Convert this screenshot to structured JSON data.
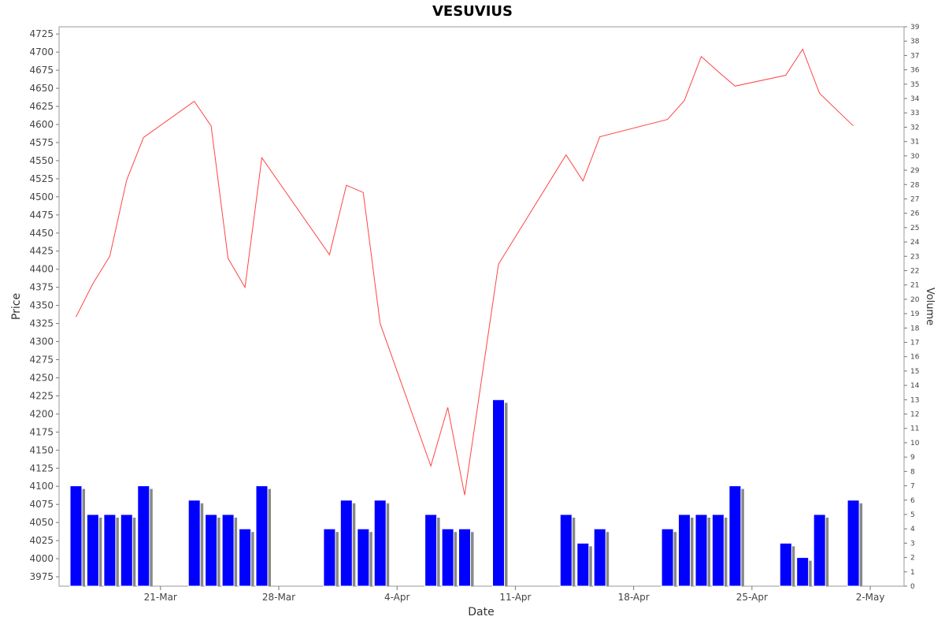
{
  "chart_data": {
    "type": "line",
    "title": "VESUVIUS",
    "xlabel": "Date",
    "ylabel": "Price",
    "y2label": "Volume",
    "x_tick_labels": [
      "21-Mar",
      "28-Mar",
      "4-Apr",
      "11-Apr",
      "18-Apr",
      "25-Apr",
      "2-May"
    ],
    "y_ticks": [
      3975,
      4000,
      4025,
      4050,
      4075,
      4100,
      4125,
      4150,
      4175,
      4200,
      4225,
      4250,
      4275,
      4300,
      4325,
      4350,
      4375,
      4400,
      4425,
      4450,
      4475,
      4500,
      4525,
      4550,
      4575,
      4600,
      4625,
      4650,
      4675,
      4700,
      4725
    ],
    "y2_ticks": [
      0,
      1,
      2,
      3,
      4,
      5,
      6,
      7,
      8,
      9,
      10,
      11,
      12,
      13,
      14,
      15,
      16,
      17,
      18,
      19,
      20,
      21,
      22,
      23,
      24,
      25,
      26,
      27,
      28,
      29,
      30,
      31,
      32,
      33,
      34,
      35,
      36,
      37,
      38,
      39
    ],
    "ylim": [
      3962,
      4735
    ],
    "y2lim": [
      0,
      39
    ],
    "xlim": [
      "2022-03-15",
      "2022-05-04"
    ],
    "grid": false,
    "colors": {
      "price": "#ff4444",
      "volume": "#0000ff",
      "volume_shadow": "#888888"
    },
    "series": [
      {
        "values": [
          [
            "2022-03-16",
            4334
          ],
          [
            "2022-03-17",
            4380
          ],
          [
            "2022-03-18",
            4418
          ],
          [
            "2022-03-19",
            4523
          ],
          [
            "2022-03-20",
            4582
          ],
          [
            "2022-03-23",
            4632
          ],
          [
            "2022-03-24",
            4598
          ],
          [
            "2022-03-25",
            4415
          ],
          [
            "2022-03-26",
            4375
          ],
          [
            "2022-03-27",
            4554
          ],
          [
            "2022-03-31",
            4420
          ],
          [
            "2022-04-01",
            4516
          ],
          [
            "2022-04-02",
            4506
          ],
          [
            "2022-04-03",
            4325
          ],
          [
            "2022-04-06",
            4128
          ],
          [
            "2022-04-07",
            4209
          ],
          [
            "2022-04-08",
            4088
          ],
          [
            "2022-04-10",
            4407
          ],
          [
            "2022-04-14",
            4558
          ],
          [
            "2022-04-15",
            4522
          ],
          [
            "2022-04-16",
            4583
          ],
          [
            "2022-04-20",
            4607
          ],
          [
            "2022-04-21",
            4633
          ],
          [
            "2022-04-22",
            4694
          ],
          [
            "2022-04-23",
            4673
          ],
          [
            "2022-04-24",
            4653
          ],
          [
            "2022-04-27",
            4668
          ],
          [
            "2022-04-28",
            4704
          ],
          [
            "2022-04-29",
            4643
          ],
          [
            "2022-05-01",
            4598
          ]
        ]
      },
      {
        "type": "bar",
        "values": [
          [
            "2022-03-16",
            7
          ],
          [
            "2022-03-17",
            5
          ],
          [
            "2022-03-18",
            5
          ],
          [
            "2022-03-19",
            5
          ],
          [
            "2022-03-20",
            7
          ],
          [
            "2022-03-23",
            6
          ],
          [
            "2022-03-24",
            5
          ],
          [
            "2022-03-25",
            5
          ],
          [
            "2022-03-26",
            4
          ],
          [
            "2022-03-27",
            7
          ],
          [
            "2022-03-31",
            4
          ],
          [
            "2022-04-01",
            6
          ],
          [
            "2022-04-02",
            4
          ],
          [
            "2022-04-03",
            6
          ],
          [
            "2022-04-06",
            5
          ],
          [
            "2022-04-07",
            4
          ],
          [
            "2022-04-08",
            4
          ],
          [
            "2022-04-10",
            13
          ],
          [
            "2022-04-14",
            5
          ],
          [
            "2022-04-15",
            3
          ],
          [
            "2022-04-16",
            4
          ],
          [
            "2022-04-20",
            4
          ],
          [
            "2022-04-21",
            5
          ],
          [
            "2022-04-22",
            5
          ],
          [
            "2022-04-23",
            5
          ],
          [
            "2022-04-24",
            7
          ],
          [
            "2022-04-27",
            3
          ],
          [
            "2022-04-28",
            2
          ],
          [
            "2022-04-29",
            5
          ],
          [
            "2022-05-01",
            6
          ]
        ]
      }
    ]
  }
}
